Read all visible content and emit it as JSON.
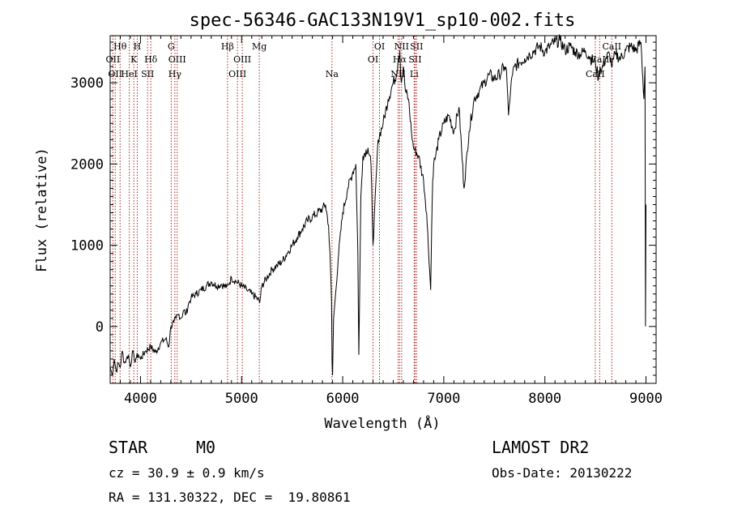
{
  "chart_data": {
    "type": "line",
    "title": "spec-56346-GAC133N19V1_sp10-002.fits",
    "xlabel": "Wavelength (Å)",
    "ylabel": "Flux (relative)",
    "xlim": [
      3700,
      9100
    ],
    "ylim": [
      -700,
      3580
    ],
    "xticks": [
      4000,
      5000,
      6000,
      7000,
      8000,
      9000
    ],
    "yticks": [
      0,
      1000,
      2000,
      3000
    ],
    "line_color": "#000000",
    "marker_color": "#b22222",
    "series": [
      {
        "x": [
          3700,
          3720,
          3740,
          3760,
          3780,
          3800,
          3820,
          3840,
          3860,
          3880,
          3900,
          3920,
          3940,
          3960,
          3980,
          4000,
          4050,
          4100,
          4150,
          4200,
          4250,
          4280,
          4300,
          4330,
          4350,
          4380,
          4400,
          4430,
          4450,
          4480,
          4500,
          4550,
          4600,
          4650,
          4700,
          4750,
          4800,
          4850,
          4870,
          4900,
          4950,
          5000,
          5050,
          5100,
          5150,
          5180,
          5200,
          5250,
          5300,
          5350,
          5400,
          5450,
          5500,
          5550,
          5600,
          5650,
          5700,
          5750,
          5800,
          5830,
          5860,
          5880,
          5890,
          5895,
          5900,
          5910,
          5930,
          5960,
          6000,
          6050,
          6100,
          6130,
          6150,
          6160,
          6180,
          6200,
          6250,
          6280,
          6300,
          6350,
          6400,
          6450,
          6500,
          6530,
          6550,
          6565,
          6580,
          6600,
          6620,
          6650,
          6680,
          6700,
          6750,
          6800,
          6830,
          6860,
          6870,
          6880,
          6890,
          6900,
          6920,
          6950,
          7000,
          7050,
          7100,
          7150,
          7200,
          7250,
          7300,
          7350,
          7400,
          7450,
          7500,
          7550,
          7600,
          7620,
          7640,
          7660,
          7680,
          7700,
          7750,
          7800,
          7850,
          7900,
          7950,
          8000,
          8050,
          8100,
          8150,
          8200,
          8250,
          8300,
          8350,
          8400,
          8450,
          8500,
          8530,
          8545,
          8560,
          8600,
          8640,
          8665,
          8680,
          8700,
          8750,
          8800,
          8850,
          8900,
          8950,
          8980,
          8990,
          8995,
          9000
        ],
        "values": [
          -500,
          -600,
          -400,
          -550,
          -450,
          -500,
          -300,
          -450,
          -400,
          -350,
          -500,
          -300,
          -420,
          -380,
          -350,
          -400,
          -300,
          -250,
          -320,
          -200,
          -150,
          -250,
          0,
          50,
          100,
          150,
          100,
          200,
          150,
          300,
          350,
          400,
          450,
          500,
          550,
          500,
          520,
          480,
          520,
          600,
          550,
          500,
          450,
          400,
          350,
          300,
          500,
          600,
          700,
          750,
          800,
          900,
          1000,
          1100,
          1200,
          1300,
          1350,
          1400,
          1450,
          1500,
          1250,
          700,
          300,
          -450,
          -600,
          100,
          400,
          900,
          1400,
          1700,
          1900,
          2000,
          900,
          -350,
          1600,
          2100,
          2200,
          2000,
          1000,
          2300,
          2500,
          2800,
          3000,
          3100,
          3300,
          3400,
          3000,
          3200,
          2900,
          2800,
          2400,
          2200,
          2100,
          1800,
          1400,
          700,
          450,
          1200,
          1800,
          2000,
          2100,
          2300,
          2500,
          2600,
          2400,
          2700,
          1700,
          2400,
          2800,
          2900,
          3000,
          3100,
          3050,
          3100,
          3200,
          3150,
          2600,
          2900,
          3100,
          3200,
          3250,
          3300,
          3350,
          3400,
          3450,
          3380,
          3450,
          3500,
          3520,
          3400,
          3450,
          3380,
          3350,
          3400,
          3300,
          3250,
          3050,
          3200,
          3150,
          3300,
          3350,
          3200,
          3300,
          3350,
          3300,
          3400,
          3450,
          3400,
          3500,
          2800,
          3200,
          0,
          1500
        ]
      }
    ],
    "line_markers": [
      {
        "wl": 3727,
        "label": "OII",
        "row": 1
      },
      {
        "wl": 3750,
        "label": "OII",
        "row": 2
      },
      {
        "wl": 3798,
        "label": "Hθ",
        "row": 0
      },
      {
        "wl": 3889,
        "label": "HeI",
        "row": 2
      },
      {
        "wl": 3934,
        "label": "K",
        "row": 1
      },
      {
        "wl": 3968,
        "label": "H",
        "row": 0
      },
      {
        "wl": 4070,
        "label": "SII",
        "row": 2
      },
      {
        "wl": 4102,
        "label": "Hδ",
        "row": 1
      },
      {
        "wl": 4304,
        "label": "G",
        "row": 0
      },
      {
        "wl": 4340,
        "label": "Hγ",
        "row": 2
      },
      {
        "wl": 4363,
        "label": "OIII",
        "row": 1
      },
      {
        "wl": 4861,
        "label": "Hβ",
        "row": 0
      },
      {
        "wl": 4959,
        "label": "OIII",
        "row": 2
      },
      {
        "wl": 5007,
        "label": "OIII",
        "row": 1
      },
      {
        "wl": 5175,
        "label": "Mg",
        "row": 0
      },
      {
        "wl": 5894,
        "label": "Na",
        "row": 2
      },
      {
        "wl": 6300,
        "label": "OI",
        "row": 1
      },
      {
        "wl": 6364,
        "label": "OI",
        "row": 0
      },
      {
        "wl": 6548,
        "label": "NII",
        "row": 2
      },
      {
        "wl": 6563,
        "label": "Hα",
        "row": 1
      },
      {
        "wl": 6583,
        "label": "NII",
        "row": 0
      },
      {
        "wl": 6707,
        "label": "Li",
        "row": 2
      },
      {
        "wl": 6716,
        "label": "SII",
        "row": 1
      },
      {
        "wl": 6731,
        "label": "SII",
        "row": 0
      },
      {
        "wl": 8498,
        "label": "CaII",
        "row": 2
      },
      {
        "wl": 8542,
        "label": "CaII",
        "row": 1
      },
      {
        "wl": 8662,
        "label": "CaII",
        "row": 0
      }
    ]
  },
  "info": {
    "classification": "STAR",
    "subclass": "M0",
    "survey": "LAMOST DR2",
    "redshift": "cz = 30.9 ± 0.9 km/s",
    "obs_date": "Obs-Date: 20130222",
    "coords": "RA = 131.30322, DEC =  19.80861"
  }
}
